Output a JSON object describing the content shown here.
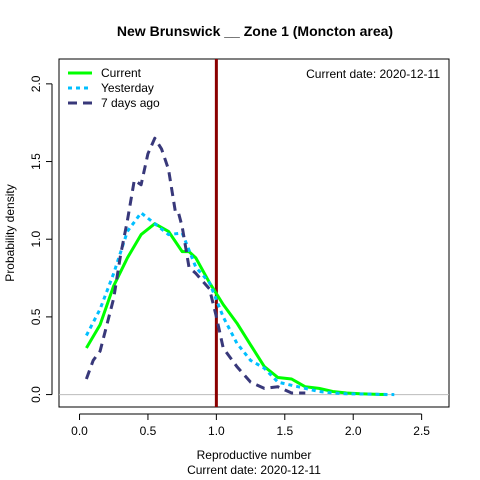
{
  "chart_data": {
    "type": "line",
    "title": "New Brunswick __ Zone 1 (Moncton area)",
    "xlabel": "Reproductive number",
    "ylabel": "Probability density",
    "caption": "Current date:  2020-12-11",
    "annotation": "Current date:  2020-12-11",
    "xlim": [
      -0.15,
      2.7
    ],
    "ylim": [
      -0.08,
      2.16
    ],
    "x_ticks": [
      "0.0",
      "0.5",
      "1.0",
      "1.5",
      "2.0",
      "2.5"
    ],
    "x_tick_values": [
      0,
      0.5,
      1,
      1.5,
      2,
      2.5
    ],
    "y_ticks": [
      "0.0",
      "0.5",
      "1.0",
      "1.5",
      "2.0"
    ],
    "y_tick_values": [
      0,
      0.5,
      1,
      1.5,
      2
    ],
    "grid": false,
    "legend_position": "top-left",
    "reference_line": {
      "x": 1.0,
      "color": "#8b0000"
    },
    "baseline": {
      "y": 0,
      "color": "#bbbbbb"
    },
    "series": [
      {
        "name": "Current",
        "color": "#00ff00",
        "dash": "solid",
        "x": [
          0.05,
          0.15,
          0.25,
          0.35,
          0.45,
          0.55,
          0.65,
          0.75,
          0.8,
          0.85,
          0.95,
          1.05,
          1.15,
          1.25,
          1.35,
          1.45,
          1.55,
          1.65,
          1.75,
          1.85,
          1.95,
          2.05,
          2.25
        ],
        "y": [
          0.3,
          0.45,
          0.7,
          0.88,
          1.03,
          1.1,
          1.05,
          0.92,
          0.92,
          0.88,
          0.72,
          0.58,
          0.46,
          0.32,
          0.18,
          0.11,
          0.1,
          0.05,
          0.04,
          0.02,
          0.01,
          0.005,
          0.0
        ]
      },
      {
        "name": "Yesterday",
        "color": "#00bfff",
        "dash": "dotted",
        "x": [
          0.05,
          0.15,
          0.25,
          0.35,
          0.45,
          0.55,
          0.65,
          0.75,
          0.85,
          0.95,
          1.05,
          1.15,
          1.25,
          1.35,
          1.45,
          1.55,
          1.65,
          1.75,
          1.85,
          1.95,
          2.1,
          2.3
        ],
        "y": [
          0.38,
          0.55,
          0.78,
          1.05,
          1.17,
          1.1,
          1.03,
          1.04,
          0.82,
          0.72,
          0.5,
          0.33,
          0.22,
          0.17,
          0.08,
          0.06,
          0.04,
          0.02,
          0.01,
          0.005,
          0.003,
          0.0
        ]
      },
      {
        "name": "7 days ago",
        "color": "#38387a",
        "dash": "dashed",
        "x": [
          0.05,
          0.1,
          0.15,
          0.25,
          0.3,
          0.35,
          0.4,
          0.45,
          0.5,
          0.55,
          0.6,
          0.65,
          0.7,
          0.72,
          0.75,
          0.8,
          0.85,
          0.95,
          1.0,
          1.05,
          1.15,
          1.25,
          1.35,
          1.45,
          1.55,
          1.65
        ],
        "y": [
          0.1,
          0.22,
          0.28,
          0.62,
          0.9,
          1.12,
          1.38,
          1.35,
          1.55,
          1.65,
          1.58,
          1.45,
          1.18,
          1.18,
          1.08,
          0.82,
          0.78,
          0.68,
          0.5,
          0.3,
          0.18,
          0.08,
          0.04,
          0.05,
          0.01,
          0.01
        ]
      }
    ]
  }
}
